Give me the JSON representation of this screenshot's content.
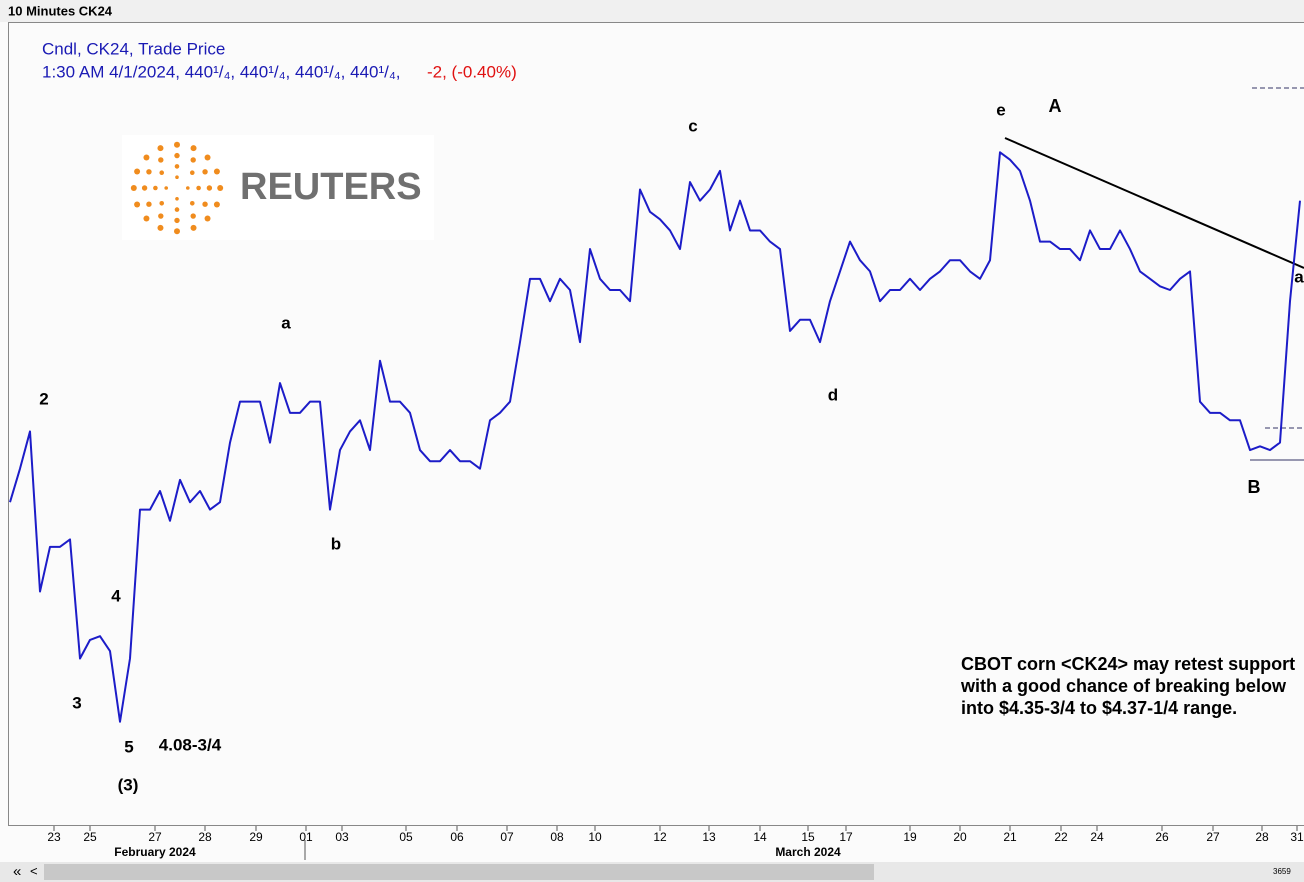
{
  "window_title": "10 Minutes CK24",
  "legend": {
    "line1": "Cndl, CK24, Trade Price",
    "line2": "1:30 AM 4/1/2024, 440¹/₄, 440¹/₄, 440¹/₄, 440¹/₄,",
    "change": "-2, (-0.40%)"
  },
  "logo": "REUTERS",
  "chart_data": {
    "type": "line",
    "series": [
      {
        "name": "CK24",
        "color": "#1c1cc8",
        "values": [
          424.75,
          427,
          429.5,
          418.75,
          421.75,
          421.75,
          422.25,
          414.25,
          415.5,
          415.75,
          414.75,
          410,
          414.25,
          424.25,
          424.25,
          425.5,
          423.5,
          426.25,
          424.75,
          425.5,
          424.25,
          424.75,
          428.75,
          431.5,
          431.5,
          431.5,
          428.75,
          432.75,
          430.75,
          430.75,
          431.5,
          431.5,
          424.25,
          428.25,
          429.5,
          430.25,
          428.25,
          434.25,
          431.5,
          431.5,
          430.75,
          428.25,
          427.5,
          427.5,
          428.25,
          427.5,
          427.5,
          427,
          430.25,
          430.75,
          431.5,
          435.5,
          439.75,
          439.75,
          438.25,
          439.75,
          439,
          435.5,
          441.75,
          439.75,
          439,
          439,
          438.25,
          445.75,
          444.25,
          443.75,
          443,
          441.75,
          446.25,
          445,
          445.75,
          447,
          443,
          445,
          443,
          443,
          442.25,
          441.75,
          436.25,
          437,
          437,
          435.5,
          438.25,
          440.25,
          442.25,
          441,
          440.25,
          438.25,
          439,
          439,
          439.75,
          439,
          439.75,
          440.25,
          441,
          441,
          440.25,
          439.75,
          441,
          448.25,
          447.75,
          447,
          445,
          442.25,
          442.25,
          441.75,
          441.75,
          441,
          443,
          441.75,
          441.75,
          443,
          441.75,
          440.25,
          439.75,
          439.25,
          439,
          439.75,
          440.25,
          431.5,
          430.75,
          430.75,
          430.25,
          430.25,
          428.25,
          428.5,
          428.25,
          428.75,
          438.25,
          445
        ]
      }
    ],
    "xlim": [
      0,
      129
    ],
    "ylim": [
      403,
      457
    ],
    "xticks": [
      {
        "value": 4.4,
        "label": "23"
      },
      {
        "value": 8,
        "label": "25"
      },
      {
        "value": 14.5,
        "label": "27"
      },
      {
        "value": 19.5,
        "label": "28"
      },
      {
        "value": 24.6,
        "label": "29"
      },
      {
        "value": 29.6,
        "label": "01"
      },
      {
        "value": 33.2,
        "label": "03"
      },
      {
        "value": 39.6,
        "label": "05"
      },
      {
        "value": 44.7,
        "label": "06"
      },
      {
        "value": 49.7,
        "label": "07"
      },
      {
        "value": 54.7,
        "label": "08"
      },
      {
        "value": 58.5,
        "label": "10"
      },
      {
        "value": 65,
        "label": "12"
      },
      {
        "value": 69.9,
        "label": "13"
      },
      {
        "value": 75,
        "label": "14"
      },
      {
        "value": 79.8,
        "label": "15"
      },
      {
        "value": 83.6,
        "label": "17"
      },
      {
        "value": 90,
        "label": "19"
      },
      {
        "value": 95,
        "label": "20"
      },
      {
        "value": 100,
        "label": "21"
      },
      {
        "value": 105.1,
        "label": "22"
      },
      {
        "value": 108.7,
        "label": "24"
      },
      {
        "value": 115.2,
        "label": "26"
      },
      {
        "value": 120.3,
        "label": "27"
      },
      {
        "value": 125.2,
        "label": "28"
      },
      {
        "value": 128.7,
        "label": "31"
      }
    ],
    "months": [
      "February 2024",
      "March 2024"
    ],
    "annotations": [
      "2",
      "3",
      "4",
      "5",
      "(3)",
      "4.08-3/4",
      "a",
      "b",
      "c",
      "d",
      "e",
      "A",
      "B",
      "a"
    ],
    "commentary": [
      "CBOT corn <CK24> may retest support",
      "with a good chance of breaking below",
      " into $4.35-3/4 to $4.37-1/4 range."
    ]
  },
  "scrollbar": {
    "first": "«",
    "prev": "<",
    "count": "3659"
  }
}
